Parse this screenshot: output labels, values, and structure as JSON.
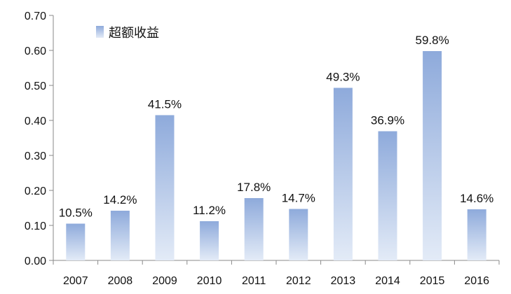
{
  "chart_data": {
    "type": "bar",
    "categories": [
      "2007",
      "2008",
      "2009",
      "2010",
      "2011",
      "2012",
      "2013",
      "2014",
      "2015",
      "2016"
    ],
    "series": [
      {
        "name": "超额收益",
        "values": [
          0.105,
          0.142,
          0.415,
          0.112,
          0.178,
          0.147,
          0.493,
          0.369,
          0.598,
          0.146
        ],
        "labels": [
          "10.5%",
          "14.2%",
          "41.5%",
          "11.2%",
          "17.8%",
          "14.7%",
          "49.3%",
          "36.9%",
          "59.8%",
          "14.6%"
        ]
      }
    ],
    "title": "",
    "xlabel": "",
    "ylabel": "",
    "ylim": [
      0,
      0.7
    ],
    "yticks": [
      "0.00",
      "0.10",
      "0.20",
      "0.30",
      "0.40",
      "0.50",
      "0.60",
      "0.70"
    ],
    "grid": false,
    "legend": "top-left",
    "colors": {
      "bar_top": "#8eaadb",
      "bar_bottom": "#e3ebf7"
    }
  }
}
